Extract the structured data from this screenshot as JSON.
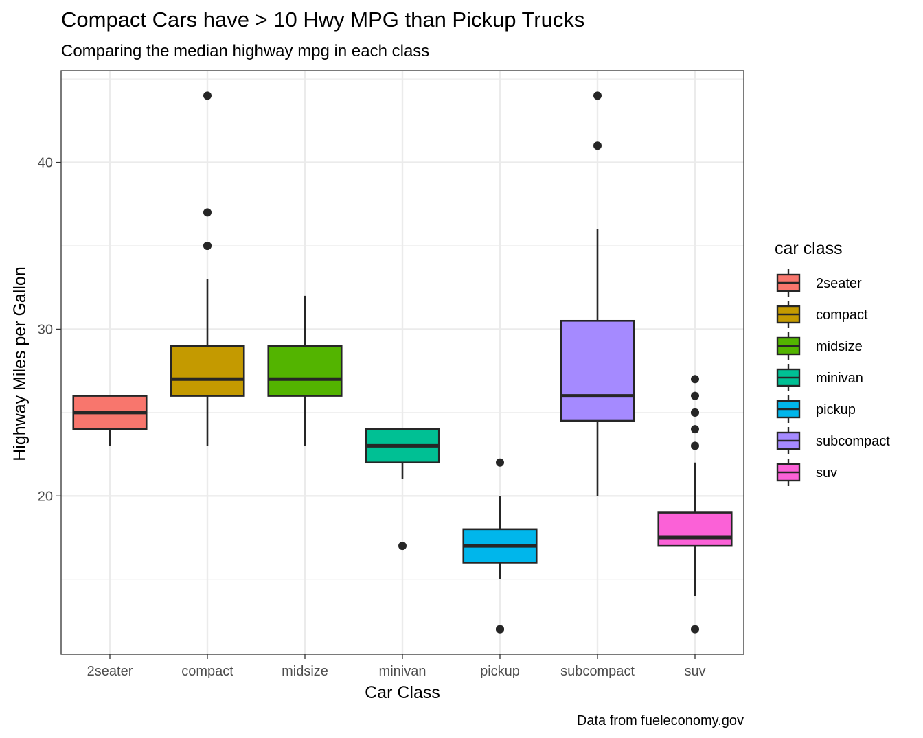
{
  "chart_data": {
    "type": "boxplot",
    "title": "Compact Cars have > 10 Hwy MPG than Pickup Trucks",
    "subtitle": "Comparing the median highway mpg in each class",
    "xlabel": "Car Class",
    "ylabel": "Highway Miles per Gallon",
    "caption": "Data from fueleconomy.gov",
    "ylim": [
      10.5,
      45.5
    ],
    "yticks": [
      20,
      30,
      40
    ],
    "y_minor_ticks": [
      15,
      25,
      35,
      45
    ],
    "grid": true,
    "legend": {
      "title": "car class",
      "position": "right"
    },
    "categories": [
      "2seater",
      "compact",
      "midsize",
      "minivan",
      "pickup",
      "subcompact",
      "suv"
    ],
    "series": [
      {
        "name": "2seater",
        "color": "#F8766D",
        "whisker_low": 23,
        "q1": 24,
        "median": 25,
        "q3": 26,
        "whisker_high": 26,
        "outliers": []
      },
      {
        "name": "compact",
        "color": "#C49A00",
        "whisker_low": 23,
        "q1": 26,
        "median": 27,
        "q3": 29,
        "whisker_high": 33,
        "outliers": [
          35,
          35,
          37,
          44
        ]
      },
      {
        "name": "midsize",
        "color": "#53B400",
        "whisker_low": 23,
        "q1": 26,
        "median": 27,
        "q3": 29,
        "whisker_high": 32,
        "outliers": []
      },
      {
        "name": "minivan",
        "color": "#00C094",
        "whisker_low": 21,
        "q1": 22,
        "median": 23,
        "q3": 24,
        "whisker_high": 24,
        "outliers": [
          17
        ]
      },
      {
        "name": "pickup",
        "color": "#00B6EB",
        "whisker_low": 15,
        "q1": 16,
        "median": 17,
        "q3": 18,
        "whisker_high": 20,
        "outliers": [
          12,
          12,
          22
        ]
      },
      {
        "name": "subcompact",
        "color": "#A58AFF",
        "whisker_low": 20,
        "q1": 24.5,
        "median": 26,
        "q3": 30.5,
        "whisker_high": 36,
        "outliers": [
          41,
          44
        ]
      },
      {
        "name": "suv",
        "color": "#FB61D7",
        "whisker_low": 14,
        "q1": 17,
        "median": 17.5,
        "q3": 19,
        "whisker_high": 22,
        "outliers": [
          12,
          23,
          24,
          25,
          25,
          26,
          27
        ]
      }
    ]
  }
}
